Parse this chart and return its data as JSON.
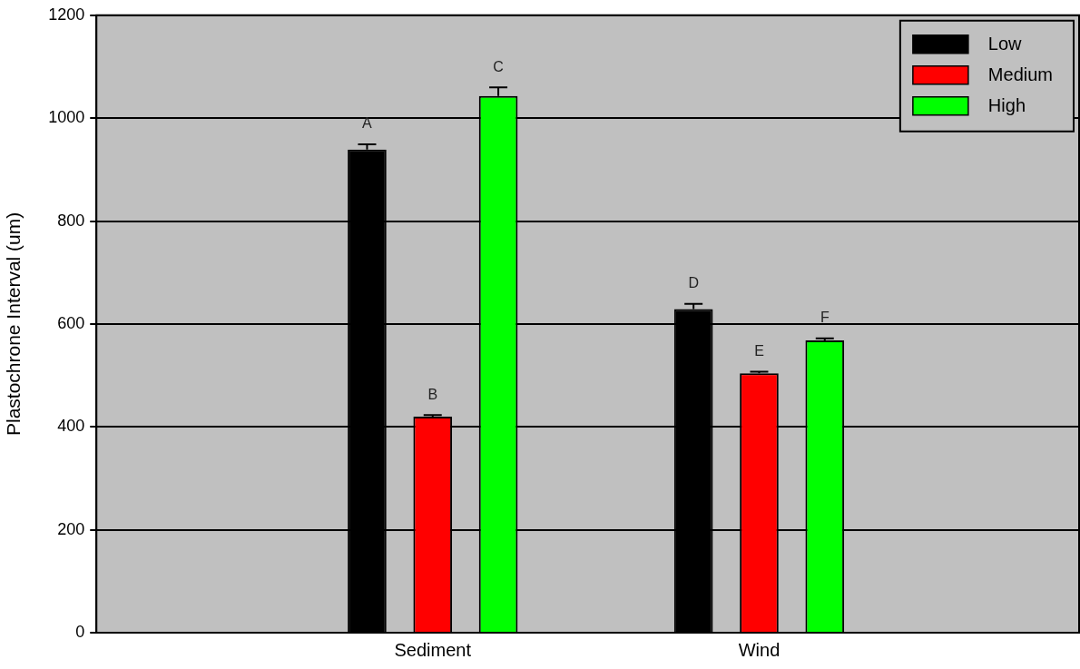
{
  "chart_data": {
    "type": "bar",
    "ylabel": "Plastochrone Interval (um)",
    "categories": [
      "Sediment",
      "Wind"
    ],
    "series": [
      {
        "name": "Low",
        "color": "#000000",
        "values": [
          939,
          629
        ],
        "errors": [
          10,
          10
        ],
        "value_labels": [
          "A",
          "D"
        ]
      },
      {
        "name": "Medium",
        "color": "#ff0000",
        "values": [
          420,
          504
        ],
        "errors": [
          3,
          3
        ],
        "value_labels": [
          "B",
          "E"
        ]
      },
      {
        "name": "High",
        "color": "#00ff00",
        "values": [
          1043,
          568
        ],
        "errors": [
          17,
          4
        ],
        "value_labels": [
          "C",
          "F"
        ]
      }
    ],
    "ylim": [
      0,
      1200
    ],
    "yticks": [
      0,
      200,
      400,
      600,
      800,
      1000,
      1200
    ],
    "grid": "y",
    "legend": "top right"
  }
}
